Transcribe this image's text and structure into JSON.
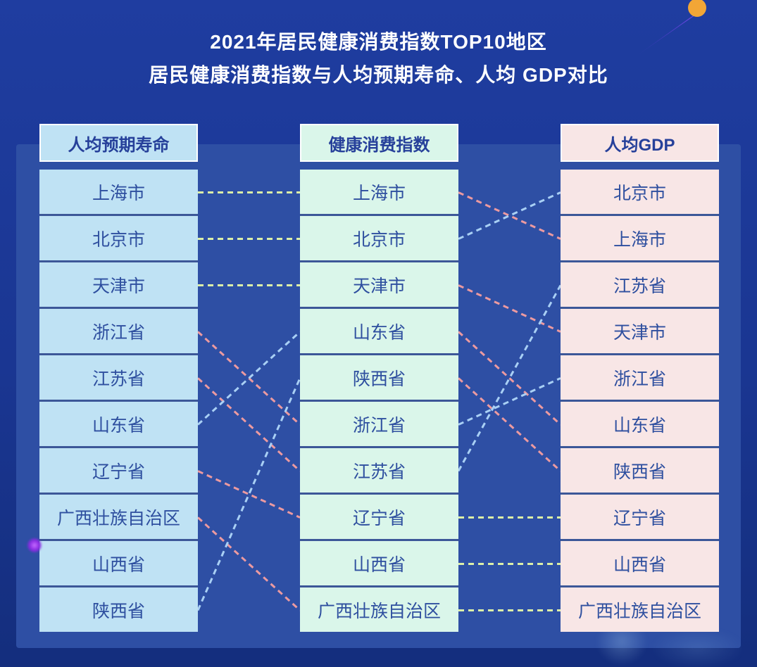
{
  "chart_data": {
    "type": "table",
    "title_lines": [
      "2021年居民健康消费指数TOP10地区",
      "居民健康消费指数与人均预期寿命、人均 GDP对比"
    ],
    "columns": [
      {
        "key": "life_expectancy",
        "header": "人均预期寿命",
        "fill": "#bfe2f4",
        "items": [
          "上海市",
          "北京市",
          "天津市",
          "浙江省",
          "江苏省",
          "山东省",
          "辽宁省",
          "广西壮族自治区",
          "山西省",
          "陕西省"
        ]
      },
      {
        "key": "health_index",
        "header": "健康消费指数",
        "fill": "#daf6ea",
        "items": [
          "上海市",
          "北京市",
          "天津市",
          "山东省",
          "陕西省",
          "浙江省",
          "江苏省",
          "辽宁省",
          "山西省",
          "广西壮族自治区"
        ]
      },
      {
        "key": "gdp",
        "header": "人均GDP",
        "fill": "#f8e6e6",
        "items": [
          "北京市",
          "上海市",
          "江苏省",
          "天津市",
          "浙江省",
          "山东省",
          "陕西省",
          "辽宁省",
          "山西省",
          "广西壮族自治区"
        ]
      }
    ],
    "links": [
      {
        "gap": 0,
        "region": "上海市",
        "from": 1,
        "to": 1
      },
      {
        "gap": 0,
        "region": "北京市",
        "from": 2,
        "to": 2
      },
      {
        "gap": 0,
        "region": "天津市",
        "from": 3,
        "to": 3
      },
      {
        "gap": 0,
        "region": "浙江省",
        "from": 4,
        "to": 6
      },
      {
        "gap": 0,
        "region": "江苏省",
        "from": 5,
        "to": 7
      },
      {
        "gap": 0,
        "region": "山东省",
        "from": 6,
        "to": 4
      },
      {
        "gap": 0,
        "region": "辽宁省",
        "from": 7,
        "to": 8
      },
      {
        "gap": 0,
        "region": "广西壮族自治区",
        "from": 8,
        "to": 10
      },
      {
        "gap": 0,
        "region": "陕西省",
        "from": 10,
        "to": 5
      },
      {
        "gap": 1,
        "region": "上海市",
        "from": 1,
        "to": 2
      },
      {
        "gap": 1,
        "region": "北京市",
        "from": 2,
        "to": 1
      },
      {
        "gap": 1,
        "region": "天津市",
        "from": 3,
        "to": 4
      },
      {
        "gap": 1,
        "region": "山东省",
        "from": 4,
        "to": 6
      },
      {
        "gap": 1,
        "region": "陕西省",
        "from": 5,
        "to": 7
      },
      {
        "gap": 1,
        "region": "浙江省",
        "from": 6,
        "to": 5
      },
      {
        "gap": 1,
        "region": "江苏省",
        "from": 7,
        "to": 3
      },
      {
        "gap": 1,
        "region": "辽宁省",
        "from": 8,
        "to": 8
      },
      {
        "gap": 1,
        "region": "山西省",
        "from": 9,
        "to": 9
      },
      {
        "gap": 1,
        "region": "广西壮族自治区",
        "from": 10,
        "to": 10
      }
    ],
    "legend_position": "none",
    "grid": false
  },
  "colors": {
    "background_top": "#1f3da0",
    "background_bottom": "#142e7d",
    "panel": "#2e4fa4",
    "header_text": "#26409a",
    "cell_text": "#2e4f9f",
    "link_same_rank": "#dcefa8",
    "link_rank_up": "#a9d0f5",
    "link_rank_down": "#ec9aa0",
    "comet_head": "#f2a636",
    "comet_tail": "#6d47e8",
    "glow_dot": "#a24df0"
  }
}
